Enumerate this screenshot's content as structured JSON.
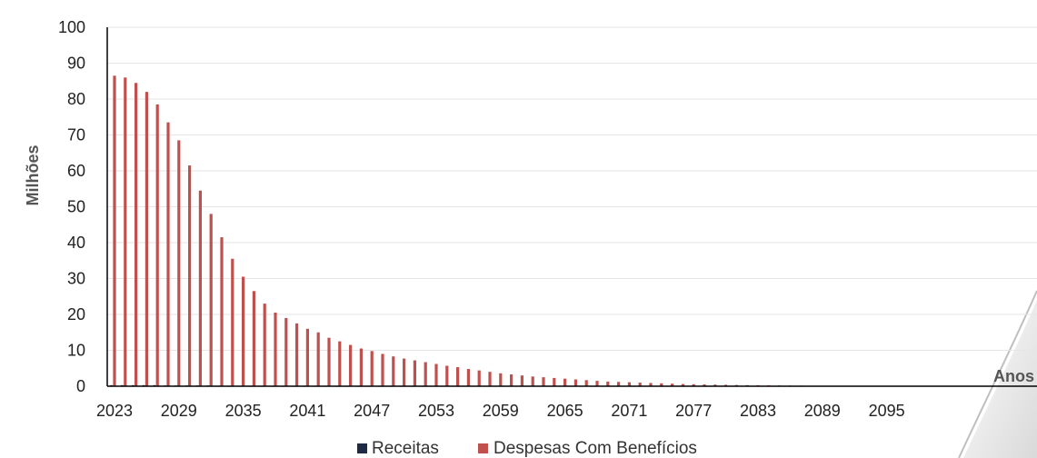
{
  "chart_data": {
    "type": "bar",
    "title": "",
    "xlabel": "Anos",
    "ylabel": "Milhões",
    "ylim": [
      0,
      100
    ],
    "yticks": [
      0,
      10,
      20,
      30,
      40,
      50,
      60,
      70,
      80,
      90,
      100
    ],
    "xtick_labels": [
      "2023",
      "2029",
      "2035",
      "2041",
      "2047",
      "2053",
      "2059",
      "2065",
      "2071",
      "2077",
      "2083",
      "2089",
      "2095"
    ],
    "legend_position": "bottom",
    "grid": true,
    "colors": {
      "receitas": "#1f2a44",
      "despesas": "#c0504d",
      "grid": "#e6e6e6",
      "axis": "#000000"
    },
    "x": [
      2023,
      2024,
      2025,
      2026,
      2027,
      2028,
      2029,
      2030,
      2031,
      2032,
      2033,
      2034,
      2035,
      2036,
      2037,
      2038,
      2039,
      2040,
      2041,
      2042,
      2043,
      2044,
      2045,
      2046,
      2047,
      2048,
      2049,
      2050,
      2051,
      2052,
      2053,
      2054,
      2055,
      2056,
      2057,
      2058,
      2059,
      2060,
      2061,
      2062,
      2063,
      2064,
      2065,
      2066,
      2067,
      2068,
      2069,
      2070,
      2071,
      2072,
      2073,
      2074,
      2075,
      2076,
      2077,
      2078,
      2079,
      2080,
      2081,
      2082,
      2083,
      2084,
      2085,
      2086,
      2087,
      2088,
      2089,
      2090,
      2091,
      2092,
      2093,
      2094,
      2095,
      2096,
      2097,
      2098,
      2099,
      2100,
      2101,
      2102,
      2103,
      2104,
      2105,
      2106
    ],
    "series": [
      {
        "name": "Receitas",
        "values": [
          0.3,
          0.3,
          0.3,
          0.3,
          0.3,
          0.2,
          0.2,
          0.2,
          0.2,
          0.2,
          0.1,
          0.1,
          0.1,
          0.1,
          0.1,
          0.1,
          0.1,
          0.1,
          0.1,
          0.1,
          0.1,
          0.1,
          0.1,
          0.1,
          0.1,
          0.1,
          0.1,
          0.1,
          0.1,
          0.1,
          0,
          0,
          0,
          0,
          0,
          0,
          0,
          0,
          0,
          0,
          0,
          0,
          0,
          0,
          0,
          0,
          0,
          0,
          0,
          0,
          0,
          0,
          0,
          0,
          0,
          0,
          0,
          0,
          0,
          0,
          0,
          0,
          0,
          0,
          0,
          0,
          0,
          0,
          0,
          0,
          0,
          0,
          0,
          0,
          0,
          0,
          0,
          0,
          0,
          0,
          0,
          0,
          0,
          0
        ]
      },
      {
        "name": "Despesas Com Benefícios",
        "values": [
          86.5,
          86,
          84.5,
          82,
          78.5,
          73.5,
          68.5,
          61.5,
          54.5,
          48,
          41.5,
          35.5,
          30.5,
          26.5,
          23,
          20.5,
          19,
          17.5,
          16,
          15,
          13.5,
          12.5,
          11.5,
          10.5,
          9.8,
          9,
          8.3,
          7.7,
          7.2,
          6.7,
          6.2,
          5.7,
          5.3,
          4.8,
          4.4,
          4,
          3.6,
          3.3,
          3,
          2.7,
          2.5,
          2.3,
          2.1,
          1.9,
          1.7,
          1.5,
          1.3,
          1.2,
          1.1,
          1,
          0.9,
          0.8,
          0.7,
          0.6,
          0.55,
          0.5,
          0.45,
          0.4,
          0.35,
          0.3,
          0.27,
          0.24,
          0.2,
          0.17,
          0.15,
          0.12,
          0.1,
          0.08,
          0.06,
          0.05,
          0.04,
          0.03,
          0.02,
          0.02,
          0.01,
          0.01,
          0.01,
          0.01,
          0,
          0,
          0,
          0,
          0,
          0
        ]
      }
    ]
  }
}
